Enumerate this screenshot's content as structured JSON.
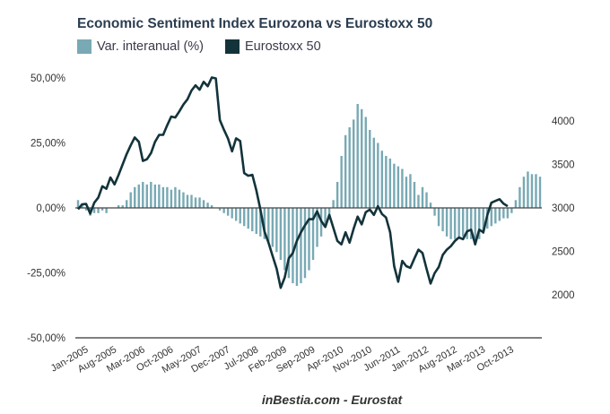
{
  "chart_data": {
    "type": "bar+line",
    "title": "Economic Sentiment Index Eurozona vs Eurostoxx 50",
    "legend": [
      {
        "name": "Var. interanual (%)",
        "color": "#78a9b4",
        "type": "bar"
      },
      {
        "name": "Eurostoxx 50",
        "color": "#13333b",
        "type": "line"
      }
    ],
    "legend_position": "top-left",
    "source": "inBestia.com - Eurostat",
    "x_start": "Jan-2005",
    "x_tick_labels": [
      "Jan-2005",
      "Aug-2005",
      "Mar-2006",
      "Oct-2006",
      "May-2007",
      "Dec-2007",
      "Jul-2008",
      "Feb-2009",
      "Sep-2009",
      "Apr-2010",
      "Nov-2010",
      "Jun-2011",
      "Jan-2012",
      "Aug-2012",
      "Mar-2013",
      "Oct-2013"
    ],
    "left_axis": {
      "ticks": [
        "50,00%",
        "25,00%",
        "0,00%",
        "-25,00%",
        "-50,00%"
      ],
      "range": [
        -50,
        50
      ]
    },
    "right_axis": {
      "ticks": [
        "4000",
        "3500",
        "3000",
        "2500",
        "2000"
      ],
      "range": [
        1500,
        4200
      ]
    },
    "series": [
      {
        "name": "Var. interanual (%)",
        "values": [
          3,
          1,
          -1,
          -3,
          -2,
          -2,
          -1,
          -2,
          0,
          0,
          1,
          1,
          3,
          6,
          8,
          9,
          10,
          9,
          10,
          9,
          9,
          8,
          8,
          7,
          8,
          7,
          6,
          5,
          5,
          4,
          4,
          3,
          2,
          1,
          0,
          -1,
          -2,
          -3,
          -4,
          -5,
          -6,
          -7,
          -8,
          -9,
          -10,
          -11,
          -12,
          -13,
          -15,
          -17,
          -20,
          -24,
          -27,
          -29,
          -30,
          -29,
          -27,
          -24,
          -20,
          -15,
          -11,
          -7,
          -3,
          3,
          10,
          20,
          28,
          31,
          34,
          40,
          38,
          35,
          30,
          27,
          25,
          22,
          20,
          19,
          17,
          16,
          15,
          12,
          13,
          10,
          5,
          8,
          6,
          2,
          -3,
          -7,
          -9,
          -11,
          -12,
          -12,
          -11,
          -11,
          -12,
          -12,
          -13,
          -12,
          -10,
          -8,
          -7,
          -6,
          -5,
          -4,
          -4,
          -2,
          3,
          8,
          12,
          14,
          13,
          13,
          12
        ]
      },
      {
        "name": "Eurostoxx 50",
        "values": [
          2985,
          3040,
          3045,
          2935,
          3060,
          3120,
          3250,
          3220,
          3350,
          3270,
          3380,
          3500,
          3620,
          3720,
          3810,
          3760,
          3540,
          3560,
          3630,
          3760,
          3840,
          3840,
          3950,
          4050,
          4040,
          4110,
          4190,
          4250,
          4350,
          4410,
          4360,
          4450,
          4400,
          4500,
          4490,
          4010,
          3900,
          3800,
          3650,
          3800,
          3770,
          3400,
          3370,
          3380,
          3200,
          2980,
          2730,
          2600,
          2450,
          2300,
          2080,
          2200,
          2420,
          2480,
          2620,
          2720,
          2800,
          2870,
          2870,
          2960,
          2850,
          2780,
          2920,
          2770,
          2620,
          2580,
          2720,
          2600,
          2760,
          2900,
          2810,
          2950,
          2980,
          2920,
          3020,
          2930,
          2890,
          2720,
          2330,
          2150,
          2390,
          2330,
          2310,
          2420,
          2520,
          2480,
          2300,
          2130,
          2250,
          2320,
          2460,
          2520,
          2560,
          2620,
          2660,
          2640,
          2730,
          2750,
          2580,
          2750,
          2720,
          2920,
          3060,
          3080,
          3100,
          3050,
          3020
        ]
      }
    ]
  }
}
